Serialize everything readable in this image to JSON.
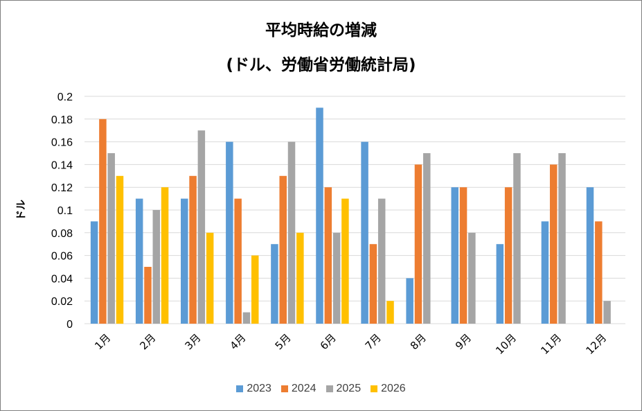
{
  "chart_data": {
    "type": "bar",
    "title": "平均時給の増減",
    "subtitle": "(ドル、労働省労働統計局)",
    "xlabel": "",
    "ylabel": "ドル",
    "ylim": [
      0,
      0.2
    ],
    "yticks": [
      "0",
      "0.02",
      "0.04",
      "0.06",
      "0.08",
      "0.1",
      "0.12",
      "0.14",
      "0.16",
      "0.18",
      "0.2"
    ],
    "categories": [
      "1月",
      "2月",
      "3月",
      "4月",
      "5月",
      "6月",
      "7月",
      "8月",
      "9月",
      "10月",
      "11月",
      "12月"
    ],
    "grid": true,
    "legend": "bottom",
    "series": [
      {
        "name": "2023",
        "color": "#5b9bd5",
        "values": [
          0.09,
          0.11,
          0.11,
          0.16,
          0.07,
          0.19,
          0.16,
          0.04,
          0.12,
          0.07,
          0.09,
          0.12
        ]
      },
      {
        "name": "2024",
        "color": "#ed7d31",
        "values": [
          0.18,
          0.05,
          0.13,
          0.11,
          0.13,
          0.12,
          0.07,
          0.14,
          0.12,
          0.12,
          0.14,
          0.09
        ]
      },
      {
        "name": "2025",
        "color": "#a5a5a5",
        "values": [
          0.15,
          0.1,
          0.17,
          0.01,
          0.16,
          0.08,
          0.11,
          0.15,
          0.08,
          0.15,
          0.15,
          0.02
        ]
      },
      {
        "name": "2026",
        "color": "#ffc000",
        "values": [
          0.13,
          0.12,
          0.08,
          0.06,
          0.08,
          0.11,
          0.02,
          null,
          null,
          null,
          null,
          null
        ]
      }
    ]
  }
}
